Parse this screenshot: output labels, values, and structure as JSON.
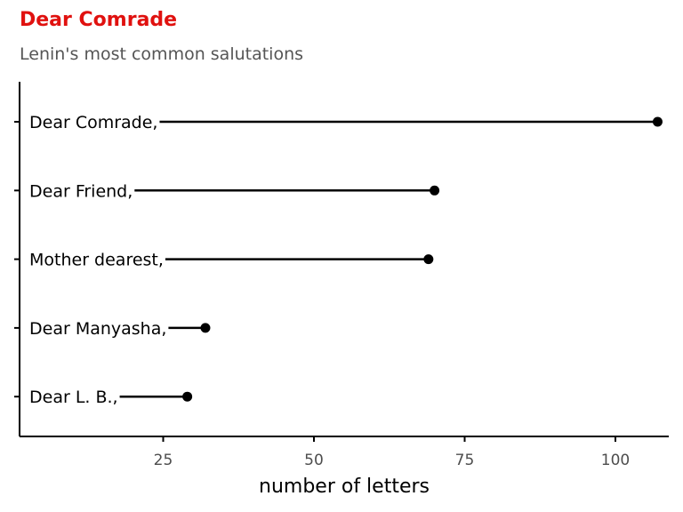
{
  "chart_data": {
    "type": "lollipop",
    "title": "Dear Comrade",
    "subtitle": "Lenin's most common salutations",
    "xlabel": "number of letters",
    "ylabel": "",
    "categories": [
      "Dear Comrade,",
      "Dear Friend,",
      "Mother dearest,",
      "Dear Manyasha,",
      "Dear L. B.,"
    ],
    "values": [
      107,
      70,
      69,
      32,
      29
    ],
    "xlim": [
      0,
      108
    ],
    "xticks": [
      25,
      50,
      75,
      100
    ],
    "grid": false,
    "colors": {
      "title": "#e0110f",
      "subtitle": "#555555",
      "mark": "#000000"
    }
  }
}
